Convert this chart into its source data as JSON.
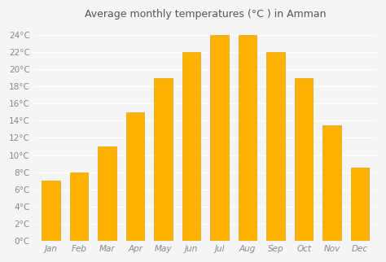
{
  "title": "Average monthly temperatures (°C ) in Amman",
  "months": [
    "Jan",
    "Feb",
    "Mar",
    "Apr",
    "May",
    "Jun",
    "Jul",
    "Aug",
    "Sep",
    "Oct",
    "Nov",
    "Dec"
  ],
  "values": [
    7,
    8,
    11,
    15,
    19,
    22,
    24,
    24,
    22,
    19,
    13.5,
    8.5
  ],
  "bar_color": "#FFB300",
  "bar_edge_color": "#E6A000",
  "ylim": [
    0,
    25
  ],
  "yticks": [
    0,
    2,
    4,
    6,
    8,
    10,
    12,
    14,
    16,
    18,
    20,
    22,
    24
  ],
  "ytick_labels": [
    "0°C",
    "2°C",
    "4°C",
    "6°C",
    "8°C",
    "10°C",
    "12°C",
    "14°C",
    "16°C",
    "18°C",
    "20°C",
    "22°C",
    "24°C"
  ],
  "background_color": "#f5f5f5",
  "grid_color": "#ffffff",
  "title_fontsize": 9,
  "tick_fontsize": 7.5,
  "title_color": "#555555",
  "tick_color": "#888888"
}
